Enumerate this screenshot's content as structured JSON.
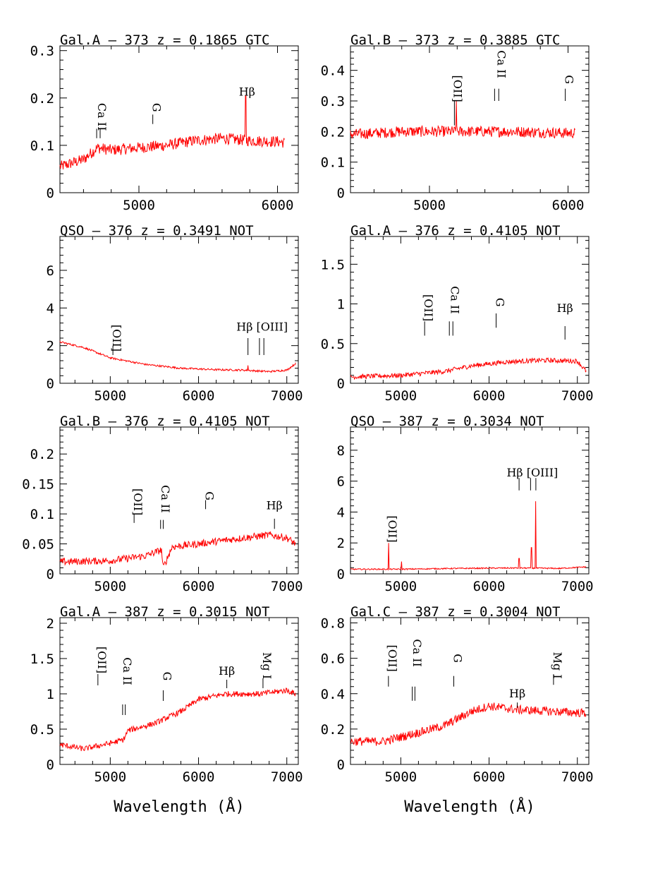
{
  "xlabel": "Wavelength (Å)",
  "colors": {
    "spectrum": "#ff0000",
    "axes": "#000000"
  },
  "chart_data": [
    {
      "type": "line",
      "title": "Gal.A –  373   z = 0.1865 GTC",
      "xlim": [
        4430,
        6150
      ],
      "ylim": [
        0,
        0.31
      ],
      "xticks": [
        5000,
        6000
      ],
      "yticks": [
        0,
        0.1,
        0.2,
        0.3
      ],
      "yticklabels": [
        "0",
        "0.1",
        "0.2",
        "0.3"
      ],
      "spectrum": [
        [
          4430,
          0.055
        ],
        [
          4600,
          0.07
        ],
        [
          4700,
          0.095
        ],
        [
          4800,
          0.09
        ],
        [
          5000,
          0.095
        ],
        [
          5200,
          0.1
        ],
        [
          5400,
          0.11
        ],
        [
          5600,
          0.115
        ],
        [
          5800,
          0.11
        ],
        [
          6000,
          0.108
        ],
        [
          6050,
          0.106
        ]
      ],
      "noise": 0.012,
      "spikes": [
        [
          5770,
          0.205
        ]
      ],
      "annotations": [
        {
          "label": "Ca II",
          "x": 4705,
          "y": 0.16,
          "rot": true,
          "bars": [
            4695,
            4720
          ],
          "bar_y": [
            0.115,
            0.135
          ]
        },
        {
          "label": "G",
          "x": 5100,
          "y": 0.18,
          "rot": true,
          "bars": [
            5100
          ],
          "bar_y": [
            0.145,
            0.165
          ]
        },
        {
          "label": "Hβ",
          "x": 5780,
          "y": 0.205,
          "rot": false,
          "bars": [],
          "bar_y": [
            0,
            0
          ]
        }
      ]
    },
    {
      "type": "line",
      "title": "Gal.B –  373   z = 0.3885 GTC",
      "xlim": [
        4430,
        6150
      ],
      "ylim": [
        0,
        0.48
      ],
      "xticks": [
        5000,
        6000
      ],
      "yticks": [
        0,
        0.1,
        0.2,
        0.3,
        0.4
      ],
      "yticklabels": [
        "0",
        "0.1",
        "0.2",
        "0.3",
        "0.4"
      ],
      "spectrum": [
        [
          4430,
          0.19
        ],
        [
          4800,
          0.2
        ],
        [
          5200,
          0.2
        ],
        [
          5600,
          0.2
        ],
        [
          6000,
          0.195
        ],
        [
          6050,
          0.195
        ]
      ],
      "noise": 0.018,
      "spikes": [
        [
          5195,
          0.3
        ]
      ],
      "annotations": [
        {
          "label": "[OII]",
          "x": 5175,
          "y": 0.34,
          "rot": true,
          "bars": [
            5180
          ],
          "bar_y": [
            0.22,
            0.3
          ]
        },
        {
          "label": "Ca II",
          "x": 5490,
          "y": 0.42,
          "rot": true,
          "bars": [
            5470,
            5500
          ],
          "bar_y": [
            0.3,
            0.34
          ]
        },
        {
          "label": "G",
          "x": 5980,
          "y": 0.37,
          "rot": true,
          "bars": [
            5980
          ],
          "bar_y": [
            0.3,
            0.34
          ]
        }
      ]
    },
    {
      "type": "line",
      "title": "QSO –  376   z = 0.3491 NOT",
      "xlim": [
        4430,
        7130
      ],
      "ylim": [
        0,
        7.8
      ],
      "xticks": [
        5000,
        6000,
        7000
      ],
      "yticks": [
        0,
        2,
        4,
        6
      ],
      "yticklabels": [
        "0",
        "2",
        "4",
        "6"
      ],
      "spectrum": [
        [
          4430,
          2.2
        ],
        [
          4700,
          1.9
        ],
        [
          5000,
          1.35
        ],
        [
          5400,
          1.0
        ],
        [
          5800,
          0.8
        ],
        [
          6200,
          0.72
        ],
        [
          6500,
          0.7
        ],
        [
          6800,
          0.62
        ],
        [
          7000,
          0.7
        ],
        [
          7100,
          1.05
        ]
      ],
      "noise": 0.05,
      "spikes": [
        [
          6560,
          0.95
        ]
      ],
      "annotations": [
        {
          "label": "[OII]",
          "x": 5030,
          "y": 2.4,
          "rot": true,
          "bars": [
            5030
          ],
          "bar_y": [
            1.5,
            2.0
          ]
        },
        {
          "label": "Hβ [OIII]",
          "x": 6720,
          "y": 2.8,
          "rot": false,
          "bars": [
            6560,
            6690,
            6740
          ],
          "bar_y": [
            1.5,
            2.4
          ]
        }
      ]
    },
    {
      "type": "line",
      "title": "Gal.A –  376   z = 0.4105 NOT",
      "xlim": [
        4430,
        7130
      ],
      "ylim": [
        0,
        1.85
      ],
      "xticks": [
        5000,
        6000,
        7000
      ],
      "yticks": [
        0,
        0.5,
        1,
        1.5
      ],
      "yticklabels": [
        "0",
        "0.5",
        "1",
        "1.5"
      ],
      "spectrum": [
        [
          4430,
          0.08
        ],
        [
          5000,
          0.1
        ],
        [
          5500,
          0.15
        ],
        [
          5800,
          0.22
        ],
        [
          6200,
          0.27
        ],
        [
          6600,
          0.29
        ],
        [
          7000,
          0.28
        ],
        [
          7100,
          0.15
        ]
      ],
      "noise": 0.03,
      "spikes": [],
      "annotations": [
        {
          "label": "[OII]",
          "x": 5270,
          "y": 0.95,
          "rot": true,
          "bars": [
            5270
          ],
          "bar_y": [
            0.6,
            0.78
          ]
        },
        {
          "label": "Ca II",
          "x": 5570,
          "y": 1.05,
          "rot": true,
          "bars": [
            5550,
            5590
          ],
          "bar_y": [
            0.6,
            0.78
          ]
        },
        {
          "label": "G",
          "x": 6080,
          "y": 1.02,
          "rot": true,
          "bars": [
            6080
          ],
          "bar_y": [
            0.7,
            0.88
          ]
        },
        {
          "label": "Hβ",
          "x": 6860,
          "y": 0.9,
          "rot": false,
          "bars": [
            6860
          ],
          "bar_y": [
            0.55,
            0.72
          ]
        }
      ]
    },
    {
      "type": "line",
      "title": "Gal.B –  376   z = 0.4105 NOT",
      "xlim": [
        4430,
        7130
      ],
      "ylim": [
        0,
        0.245
      ],
      "xticks": [
        5000,
        6000,
        7000
      ],
      "yticks": [
        0,
        0.05,
        0.1,
        0.15,
        0.2
      ],
      "yticklabels": [
        "0",
        "0.05",
        "0.1",
        "0.15",
        "0.2"
      ],
      "spectrum": [
        [
          4430,
          0.02
        ],
        [
          5000,
          0.022
        ],
        [
          5400,
          0.03
        ],
        [
          5580,
          0.04
        ],
        [
          5600,
          0.01
        ],
        [
          5700,
          0.045
        ],
        [
          6000,
          0.05
        ],
        [
          6400,
          0.058
        ],
        [
          6800,
          0.065
        ],
        [
          7000,
          0.06
        ],
        [
          7100,
          0.05
        ]
      ],
      "noise": 0.006,
      "spikes": [],
      "annotations": [
        {
          "label": "[OII]",
          "x": 5270,
          "y": 0.12,
          "rot": true,
          "bars": [
            5270
          ],
          "bar_y": [
            0.085,
            0.1
          ]
        },
        {
          "label": "Ca II",
          "x": 5580,
          "y": 0.125,
          "rot": true,
          "bars": [
            5570,
            5600
          ],
          "bar_y": [
            0.075,
            0.09
          ]
        },
        {
          "label": "G",
          "x": 6080,
          "y": 0.13,
          "rot": true,
          "bars": [
            6080
          ],
          "bar_y": [
            0.108,
            0.123
          ]
        },
        {
          "label": "Hβ",
          "x": 6860,
          "y": 0.108,
          "rot": false,
          "bars": [
            6860
          ],
          "bar_y": [
            0.075,
            0.092
          ]
        }
      ]
    },
    {
      "type": "line",
      "title": "QSO –  387   z = 0.3034 NOT",
      "xlim": [
        4430,
        7130
      ],
      "ylim": [
        0,
        9.5
      ],
      "xticks": [
        5000,
        6000,
        7000
      ],
      "yticks": [
        0,
        2,
        4,
        6,
        8
      ],
      "yticklabels": [
        "0",
        "2",
        "4",
        "6",
        "8"
      ],
      "spectrum": [
        [
          4430,
          0.3
        ],
        [
          5000,
          0.3
        ],
        [
          5600,
          0.35
        ],
        [
          6300,
          0.38
        ],
        [
          6800,
          0.35
        ],
        [
          7100,
          0.45
        ]
      ],
      "noise": 0.04,
      "spikes": [
        [
          4860,
          2.0
        ],
        [
          5010,
          0.8
        ],
        [
          6340,
          1.0
        ],
        [
          6480,
          1.7
        ],
        [
          6530,
          4.7
        ]
      ],
      "annotations": [
        {
          "label": "[OII]",
          "x": 4860,
          "y": 2.9,
          "rot": true,
          "bars": [],
          "bar_y": [
            0,
            0
          ]
        },
        {
          "label": "Hβ [OIII]",
          "x": 6490,
          "y": 6.3,
          "rot": false,
          "bars": [
            6340,
            6470,
            6530
          ],
          "bar_y": [
            5.4,
            6.2
          ]
        }
      ]
    },
    {
      "type": "line",
      "title": "Gal.A –  387   z = 0.3015 NOT",
      "xlim": [
        4430,
        7130
      ],
      "ylim": [
        0,
        2.08
      ],
      "xticks": [
        5000,
        6000,
        7000
      ],
      "yticks": [
        0,
        0.5,
        1,
        1.5,
        2
      ],
      "yticklabels": [
        "0",
        "0.5",
        "1",
        "1.5",
        "2"
      ],
      "spectrum": [
        [
          4430,
          0.28
        ],
        [
          4700,
          0.22
        ],
        [
          5000,
          0.3
        ],
        [
          5150,
          0.35
        ],
        [
          5200,
          0.48
        ],
        [
          5500,
          0.58
        ],
        [
          5800,
          0.75
        ],
        [
          6000,
          0.92
        ],
        [
          6300,
          1.0
        ],
        [
          6700,
          1.0
        ],
        [
          7000,
          1.05
        ],
        [
          7100,
          1.0
        ]
      ],
      "noise": 0.04,
      "spikes": [],
      "annotations": [
        {
          "label": "[OII]",
          "x": 4860,
          "y": 1.48,
          "rot": true,
          "bars": [
            4860
          ],
          "bar_y": [
            1.12,
            1.28
          ]
        },
        {
          "label": "Ca II",
          "x": 5150,
          "y": 1.32,
          "rot": true,
          "bars": [
            5140,
            5170
          ],
          "bar_y": [
            0.7,
            0.85
          ]
        },
        {
          "label": "G",
          "x": 5600,
          "y": 1.25,
          "rot": true,
          "bars": [
            5600
          ],
          "bar_y": [
            0.9,
            1.05
          ]
        },
        {
          "label": "Hβ",
          "x": 6320,
          "y": 1.27,
          "rot": false,
          "bars": [
            6320
          ],
          "bar_y": [
            1.08,
            1.2
          ]
        },
        {
          "label": "Mg I",
          "x": 6730,
          "y": 1.4,
          "rot": true,
          "bars": [
            6730
          ],
          "bar_y": [
            1.08,
            1.22
          ]
        }
      ]
    },
    {
      "type": "line",
      "title": "Gal.C –  387   z = 0.3004 NOT",
      "xlim": [
        4430,
        7130
      ],
      "ylim": [
        0,
        0.83
      ],
      "xticks": [
        5000,
        6000,
        7000
      ],
      "yticks": [
        0,
        0.2,
        0.4,
        0.6,
        0.8
      ],
      "yticklabels": [
        "0",
        "0.2",
        "0.4",
        "0.6",
        "0.8"
      ],
      "spectrum": [
        [
          4430,
          0.13
        ],
        [
          4800,
          0.13
        ],
        [
          5200,
          0.18
        ],
        [
          5500,
          0.22
        ],
        [
          5800,
          0.3
        ],
        [
          6000,
          0.33
        ],
        [
          6300,
          0.31
        ],
        [
          6700,
          0.3
        ],
        [
          7100,
          0.29
        ]
      ],
      "noise": 0.025,
      "spikes": [],
      "annotations": [
        {
          "label": "[OII]",
          "x": 4860,
          "y": 0.6,
          "rot": true,
          "bars": [
            4860
          ],
          "bar_y": [
            0.44,
            0.5
          ]
        },
        {
          "label": "Ca II",
          "x": 5140,
          "y": 0.63,
          "rot": true,
          "bars": [
            5130,
            5160
          ],
          "bar_y": [
            0.36,
            0.44
          ]
        },
        {
          "label": "G",
          "x": 5600,
          "y": 0.6,
          "rot": true,
          "bars": [
            5600
          ],
          "bar_y": [
            0.44,
            0.5
          ]
        },
        {
          "label": "Hβ",
          "x": 6320,
          "y": 0.38,
          "rot": false,
          "bars": [
            6320
          ],
          "bar_y": [
            0.32,
            0.35
          ]
        },
        {
          "label": "Mg I",
          "x": 6730,
          "y": 0.56,
          "rot": true,
          "bars": [
            6730
          ],
          "bar_y": [
            0.45,
            0.51
          ]
        }
      ]
    }
  ]
}
